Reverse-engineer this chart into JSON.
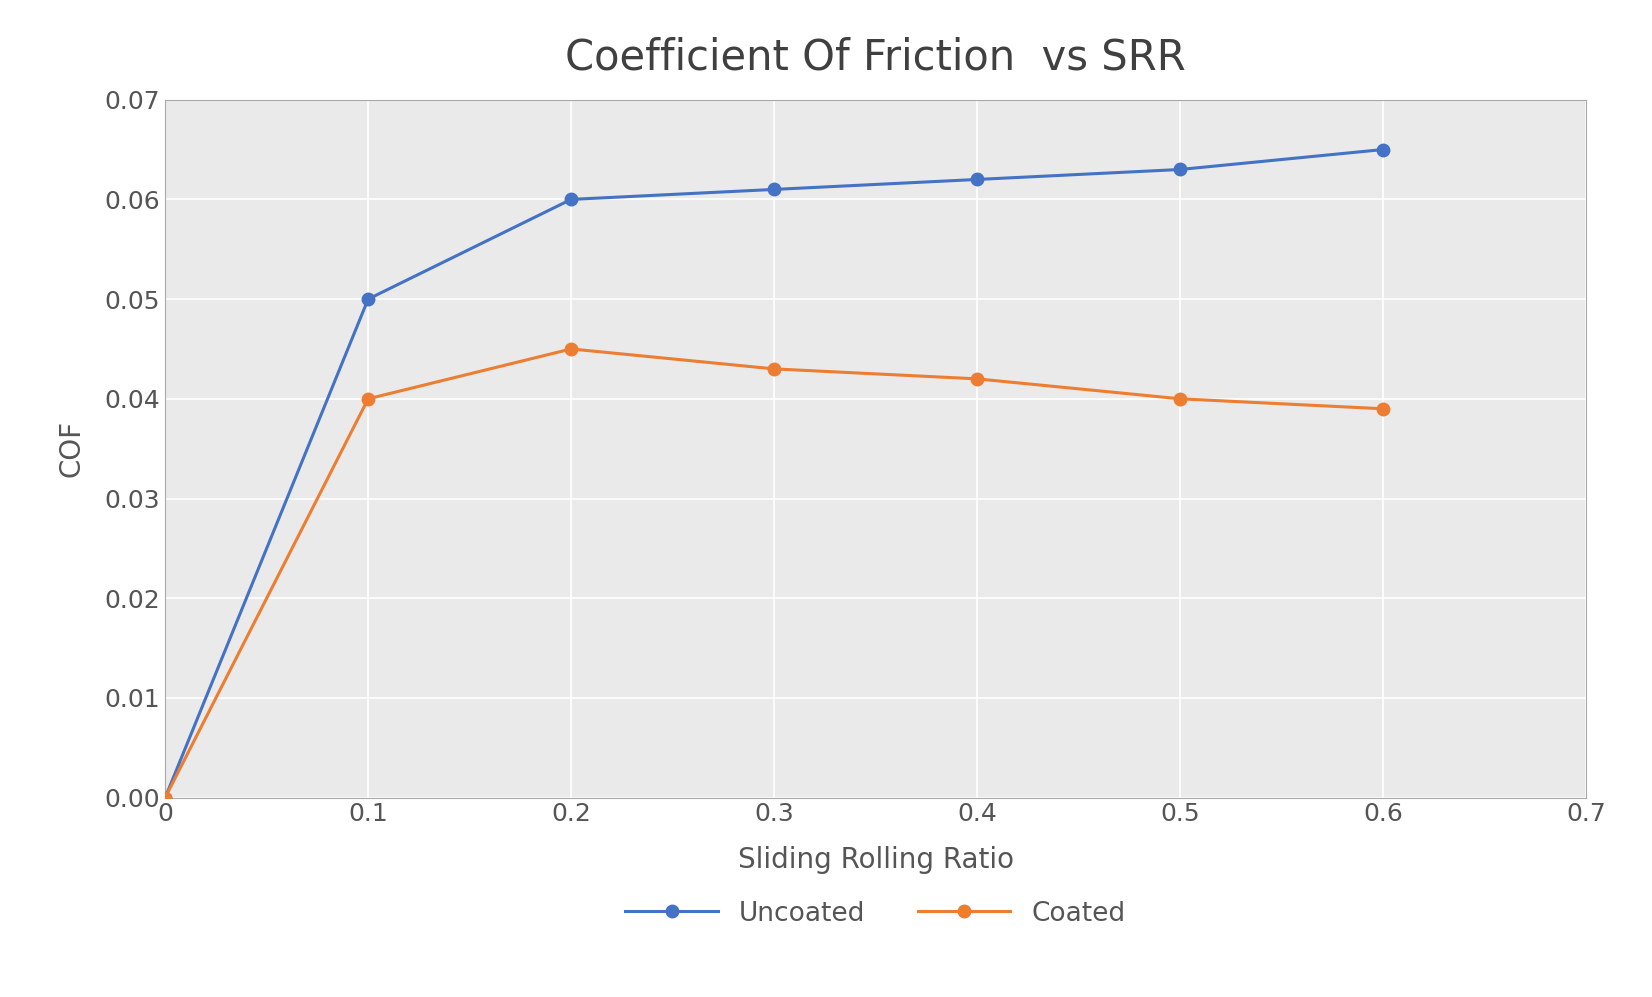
{
  "title": "Coefficient Of Friction  vs SRR",
  "xlabel": "Sliding Rolling Ratio",
  "ylabel": "COF",
  "xlim": [
    0,
    0.7
  ],
  "ylim": [
    0,
    0.07
  ],
  "xticks": [
    0,
    0.1,
    0.2,
    0.3,
    0.4,
    0.5,
    0.6,
    0.7
  ],
  "yticks": [
    0,
    0.01,
    0.02,
    0.03,
    0.04,
    0.05,
    0.06,
    0.07
  ],
  "series": [
    {
      "label": "Uncoated",
      "x": [
        0,
        0.1,
        0.2,
        0.3,
        0.4,
        0.5,
        0.6
      ],
      "y": [
        0.0,
        0.05,
        0.06,
        0.061,
        0.062,
        0.063,
        0.065
      ],
      "color": "#4472C4",
      "marker": "o",
      "linewidth": 2.2,
      "markersize": 9
    },
    {
      "label": "Coated",
      "x": [
        0,
        0.1,
        0.2,
        0.3,
        0.4,
        0.5,
        0.6
      ],
      "y": [
        0.0,
        0.04,
        0.045,
        0.043,
        0.042,
        0.04,
        0.039
      ],
      "color": "#ED7D31",
      "marker": "o",
      "linewidth": 2.2,
      "markersize": 9
    }
  ],
  "title_fontsize": 30,
  "axis_label_fontsize": 20,
  "tick_fontsize": 18,
  "legend_fontsize": 19,
  "figure_bg_color": "#FFFFFF",
  "axes_bg_color": "#EAEAEA",
  "grid_color": "#FFFFFF",
  "grid_linewidth": 1.2,
  "spine_color": "#AAAAAA",
  "title_color": "#404040",
  "tick_color": "#555555",
  "label_color": "#555555"
}
